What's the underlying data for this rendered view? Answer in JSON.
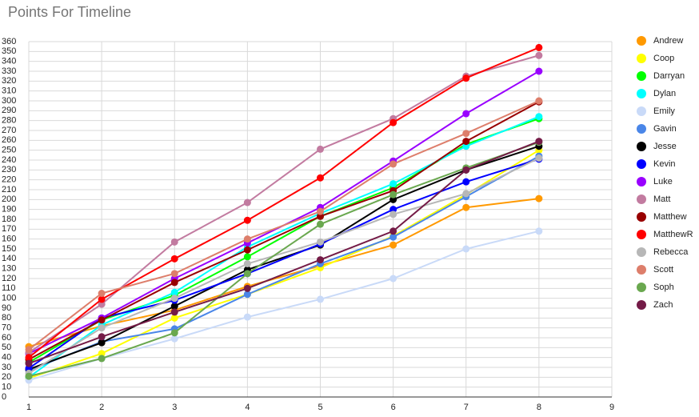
{
  "chart_data": {
    "type": "line",
    "title": "Points For Timeline",
    "x": [
      1,
      2,
      3,
      4,
      5,
      6,
      7,
      8
    ],
    "xlim": [
      1,
      9
    ],
    "xticks": [
      1,
      2,
      3,
      4,
      5,
      6,
      7,
      8,
      9
    ],
    "ylim": [
      0,
      360
    ],
    "yticks": [
      0,
      10,
      20,
      30,
      40,
      50,
      60,
      70,
      80,
      90,
      100,
      110,
      120,
      130,
      140,
      150,
      160,
      170,
      180,
      190,
      200,
      210,
      220,
      230,
      240,
      250,
      260,
      270,
      280,
      290,
      300,
      310,
      320,
      330,
      340,
      350,
      360
    ],
    "grid": true,
    "legend": "right",
    "series": [
      {
        "name": "Andrew",
        "color": "#ff9900",
        "values": [
          51,
          72,
          88,
          112,
          133,
          154,
          192,
          201
        ]
      },
      {
        "name": "Coop",
        "color": "#ffff00",
        "values": [
          19,
          44,
          80,
          104,
          131,
          163,
          205,
          250
        ]
      },
      {
        "name": "Darryan",
        "color": "#00ff00",
        "values": [
          35,
          78,
          103,
          142,
          183,
          212,
          256,
          282
        ]
      },
      {
        "name": "Dylan",
        "color": "#00ffff",
        "values": [
          20,
          73,
          106,
          152,
          186,
          216,
          254,
          284
        ]
      },
      {
        "name": "Emily",
        "color": "#c9daf8",
        "values": [
          17,
          39,
          59,
          81,
          99,
          120,
          150,
          168
        ]
      },
      {
        "name": "Gavin",
        "color": "#4a86e8",
        "values": [
          27,
          56,
          69,
          104,
          135,
          162,
          203,
          244
        ]
      },
      {
        "name": "Jesse",
        "color": "#000000",
        "values": [
          28,
          55,
          92,
          129,
          154,
          200,
          230,
          254
        ]
      },
      {
        "name": "Kevin",
        "color": "#0000ff",
        "values": [
          29,
          80,
          98,
          125,
          155,
          190,
          218,
          241
        ]
      },
      {
        "name": "Luke",
        "color": "#9900ff",
        "values": [
          44,
          80,
          120,
          156,
          192,
          239,
          287,
          330
        ]
      },
      {
        "name": "Matt",
        "color": "#c27ba0",
        "values": [
          45,
          94,
          157,
          197,
          251,
          282,
          325,
          346
        ]
      },
      {
        "name": "Matthew",
        "color": "#980000",
        "values": [
          38,
          78,
          116,
          149,
          183,
          209,
          259,
          299
        ]
      },
      {
        "name": "MatthewR",
        "color": "#ff0000",
        "values": [
          40,
          99,
          140,
          179,
          222,
          278,
          323,
          354
        ]
      },
      {
        "name": "Rebecca",
        "color": "#b7b7b7",
        "values": [
          24,
          70,
          100,
          135,
          157,
          185,
          206,
          242
        ]
      },
      {
        "name": "Scott",
        "color": "#dd7e6b",
        "values": [
          48,
          105,
          125,
          160,
          188,
          236,
          267,
          300
        ]
      },
      {
        "name": "Soph",
        "color": "#6aa84f",
        "values": [
          21,
          39,
          65,
          125,
          175,
          205,
          232,
          258
        ]
      },
      {
        "name": "Zach",
        "color": "#741b47",
        "values": [
          34,
          61,
          86,
          110,
          139,
          168,
          230,
          259
        ]
      }
    ]
  }
}
